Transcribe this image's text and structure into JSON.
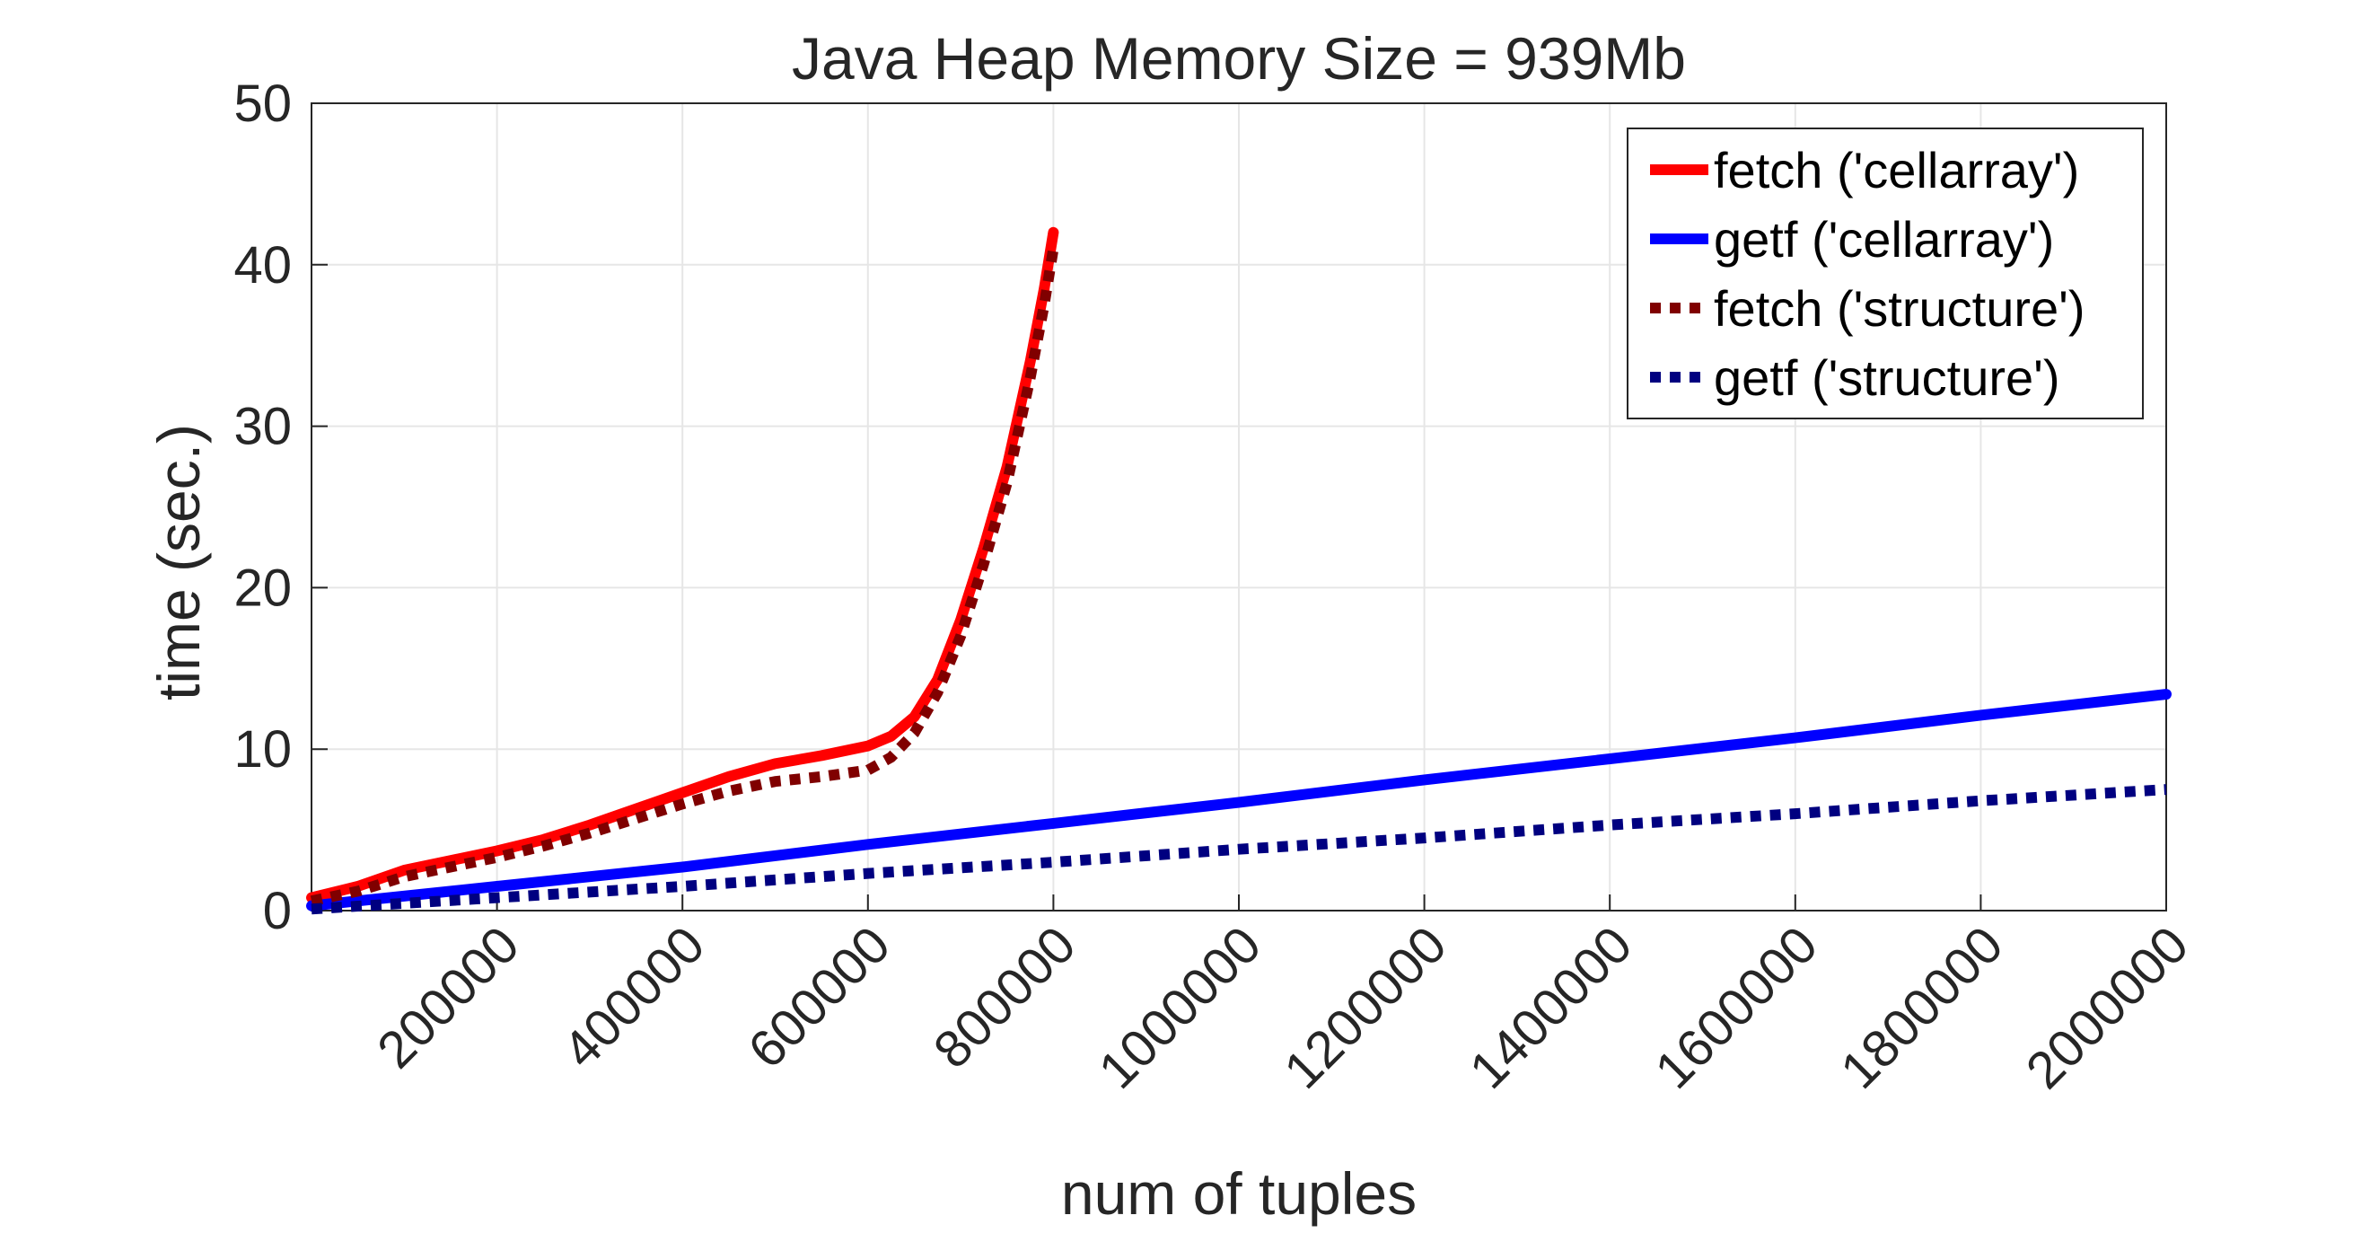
{
  "chart_data": {
    "type": "line",
    "title": "Java Heap Memory Size = 939Mb",
    "xlabel": "num of tuples",
    "ylabel": "time (sec.)",
    "xlim": [
      0,
      2000000
    ],
    "ylim": [
      0,
      50
    ],
    "xticks": [
      200000,
      400000,
      600000,
      800000,
      1000000,
      1200000,
      1400000,
      1600000,
      1800000,
      2000000
    ],
    "xtick_labels": [
      "200000",
      "400000",
      "600000",
      "800000",
      "1000000",
      "1200000",
      "1400000",
      "1600000",
      "1800000",
      "2000000"
    ],
    "yticks": [
      0,
      10,
      20,
      30,
      40,
      50
    ],
    "ytick_labels": [
      "0",
      "10",
      "20",
      "30",
      "40",
      "50"
    ],
    "grid": true,
    "legend_position": "top-right",
    "series": [
      {
        "name": "fetch ('cellarray')",
        "color": "#ff0000",
        "style": "solid",
        "x": [
          0,
          50000,
          100000,
          150000,
          200000,
          250000,
          300000,
          350000,
          400000,
          450000,
          500000,
          550000,
          600000,
          625000,
          650000,
          675000,
          700000,
          725000,
          750000,
          775000,
          790000,
          800000
        ],
        "y": [
          0.8,
          1.5,
          2.5,
          3.1,
          3.7,
          4.4,
          5.3,
          6.3,
          7.3,
          8.3,
          9.1,
          9.6,
          10.2,
          10.8,
          12.0,
          14.3,
          18.0,
          22.5,
          27.5,
          34.0,
          38.5,
          42.0
        ]
      },
      {
        "name": "getf ('cellarray')",
        "color": "#0000ff",
        "style": "solid",
        "x": [
          0,
          200000,
          400000,
          600000,
          800000,
          1000000,
          1200000,
          1400000,
          1600000,
          1800000,
          2000000
        ],
        "y": [
          0.3,
          1.5,
          2.7,
          4.1,
          5.4,
          6.7,
          8.1,
          9.4,
          10.7,
          12.1,
          13.4
        ]
      },
      {
        "name": "fetch ('structure')",
        "color": "#800000",
        "style": "dotted",
        "x": [
          0,
          50000,
          100000,
          150000,
          200000,
          250000,
          300000,
          350000,
          400000,
          450000,
          500000,
          550000,
          600000,
          625000,
          650000,
          675000,
          700000,
          725000,
          750000,
          775000,
          790000,
          800000
        ],
        "y": [
          0.6,
          1.2,
          2.1,
          2.7,
          3.3,
          4.0,
          4.8,
          5.7,
          6.6,
          7.4,
          8.0,
          8.3,
          8.7,
          9.5,
          11.0,
          13.5,
          17.0,
          21.5,
          26.5,
          33.0,
          37.5,
          41.0
        ]
      },
      {
        "name": "getf ('structure')",
        "color": "#000080",
        "style": "dotted",
        "x": [
          0,
          200000,
          400000,
          600000,
          800000,
          1000000,
          1200000,
          1400000,
          1600000,
          1800000,
          2000000
        ],
        "y": [
          0.1,
          0.8,
          1.5,
          2.3,
          3.0,
          3.8,
          4.5,
          5.3,
          6.0,
          6.8,
          7.5
        ]
      }
    ]
  }
}
